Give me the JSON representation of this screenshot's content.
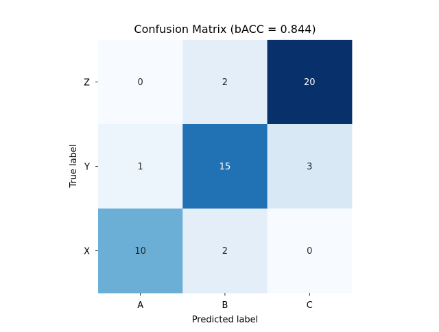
{
  "chart_data": {
    "type": "heatmap",
    "title": "Confusion Matrix (bACC = 0.844)",
    "xlabel": "Predicted label",
    "ylabel": "True label",
    "x_categories": [
      "A",
      "B",
      "C"
    ],
    "y_categories": [
      "Z",
      "Y",
      "X"
    ],
    "values": [
      [
        0,
        2,
        20
      ],
      [
        1,
        15,
        3
      ],
      [
        10,
        2,
        0
      ]
    ],
    "colormap": "Blues",
    "vmin": 0,
    "vmax": 20,
    "colorbar": false,
    "grid": false
  }
}
